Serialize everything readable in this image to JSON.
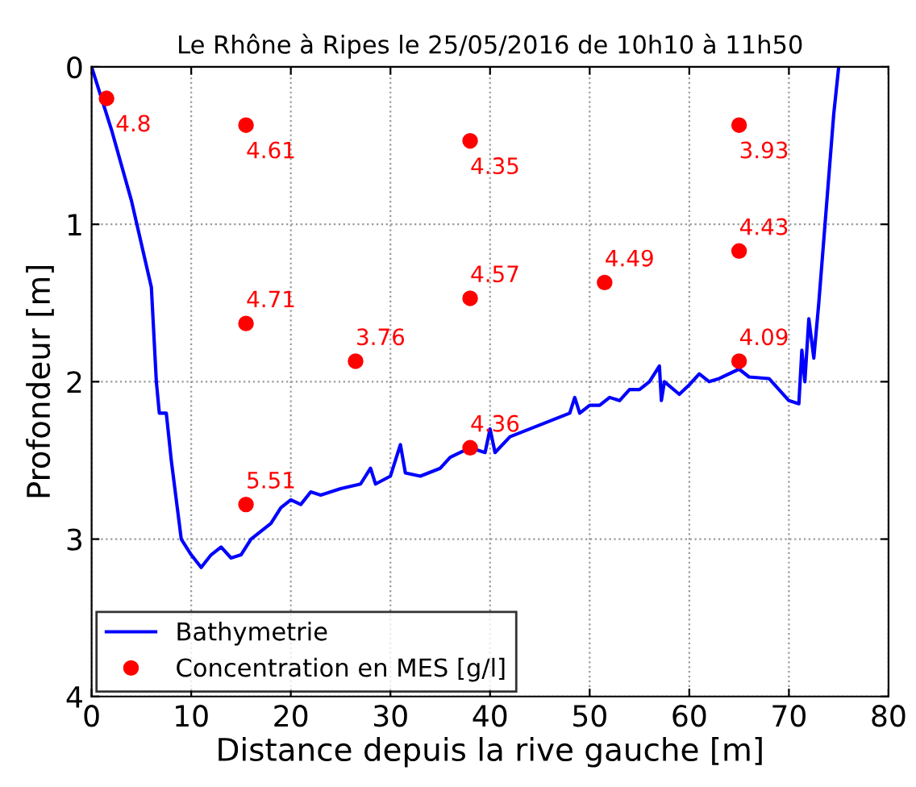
{
  "chart_data": {
    "type": "line",
    "title": "Le Rhône à Ripes le 25/05/2016 de 10h10 à 11h50",
    "xlabel": "Distance depuis la rive gauche [m]",
    "ylabel": "Profondeur [m]",
    "xlim": [
      0,
      80
    ],
    "xticks": [
      0,
      10,
      20,
      30,
      40,
      50,
      60,
      70,
      80
    ],
    "ylim": [
      4,
      0
    ],
    "yticks": [
      0,
      1,
      2,
      3,
      4
    ],
    "grid": true,
    "legend": "bottom left",
    "series": [
      {
        "name": "Bathymetrie",
        "color": "#0000ff",
        "marker": "none",
        "line_style": "solid",
        "x": [
          0,
          2,
          4,
          6,
          6.5,
          6.8,
          7.5,
          8,
          9,
          10,
          11,
          12,
          13,
          14,
          15,
          16,
          18,
          19,
          20,
          21,
          22,
          23,
          25,
          27,
          28,
          28.5,
          30,
          31,
          31.5,
          33,
          35,
          36,
          37,
          38,
          39.5,
          40,
          40.5,
          42,
          44,
          46,
          48,
          48.5,
          49,
          50,
          51,
          52,
          53,
          54,
          55,
          56,
          57,
          57.2,
          57.5,
          59,
          60,
          61,
          62,
          63,
          65,
          66,
          68,
          69,
          70,
          71,
          71.3,
          71.6,
          72,
          72.5,
          73,
          73.5,
          74.5,
          75
        ],
        "values": [
          0,
          0.4,
          0.85,
          1.4,
          2.0,
          2.2,
          2.2,
          2.5,
          3.0,
          3.1,
          3.18,
          3.1,
          3.05,
          3.12,
          3.1,
          3.0,
          2.9,
          2.8,
          2.75,
          2.78,
          2.7,
          2.72,
          2.68,
          2.65,
          2.55,
          2.65,
          2.6,
          2.4,
          2.58,
          2.6,
          2.55,
          2.48,
          2.45,
          2.42,
          2.45,
          2.3,
          2.45,
          2.35,
          2.3,
          2.25,
          2.2,
          2.1,
          2.2,
          2.15,
          2.15,
          2.1,
          2.12,
          2.05,
          2.05,
          2.0,
          1.9,
          2.12,
          2.0,
          2.08,
          2.02,
          1.95,
          2.0,
          1.98,
          1.92,
          1.97,
          1.98,
          2.05,
          2.12,
          2.14,
          1.8,
          2.0,
          1.6,
          1.85,
          1.5,
          1.1,
          0.3,
          0
        ]
      },
      {
        "name": "Concentration en MES [g/l]",
        "type": "scatter",
        "color": "#ff0000",
        "marker": "circle",
        "x": [
          1.5,
          15.5,
          15.5,
          15.5,
          26.5,
          38,
          38,
          38,
          51.5,
          65,
          65,
          65
        ],
        "values": [
          0.2,
          0.37,
          1.63,
          2.78,
          1.87,
          0.47,
          1.47,
          2.42,
          1.37,
          0.37,
          1.17,
          1.87
        ]
      }
    ],
    "annotations": [
      {
        "text": "4.8",
        "x": 1.5,
        "y": 0.2
      },
      {
        "text": "4.61",
        "x": 15.5,
        "y": 0.37
      },
      {
        "text": "4.71",
        "x": 15.5,
        "y": 1.63
      },
      {
        "text": "5.51",
        "x": 15.5,
        "y": 2.78
      },
      {
        "text": "3.76",
        "x": 26.5,
        "y": 1.87
      },
      {
        "text": "4.35",
        "x": 38,
        "y": 0.47
      },
      {
        "text": "4.57",
        "x": 38,
        "y": 1.47
      },
      {
        "text": "4.36",
        "x": 38,
        "y": 2.42
      },
      {
        "text": "4.49",
        "x": 51.5,
        "y": 1.37
      },
      {
        "text": "3.93",
        "x": 65,
        "y": 0.37
      },
      {
        "text": "4.43",
        "x": 65,
        "y": 1.17
      },
      {
        "text": "4.09",
        "x": 65,
        "y": 1.87
      }
    ]
  }
}
